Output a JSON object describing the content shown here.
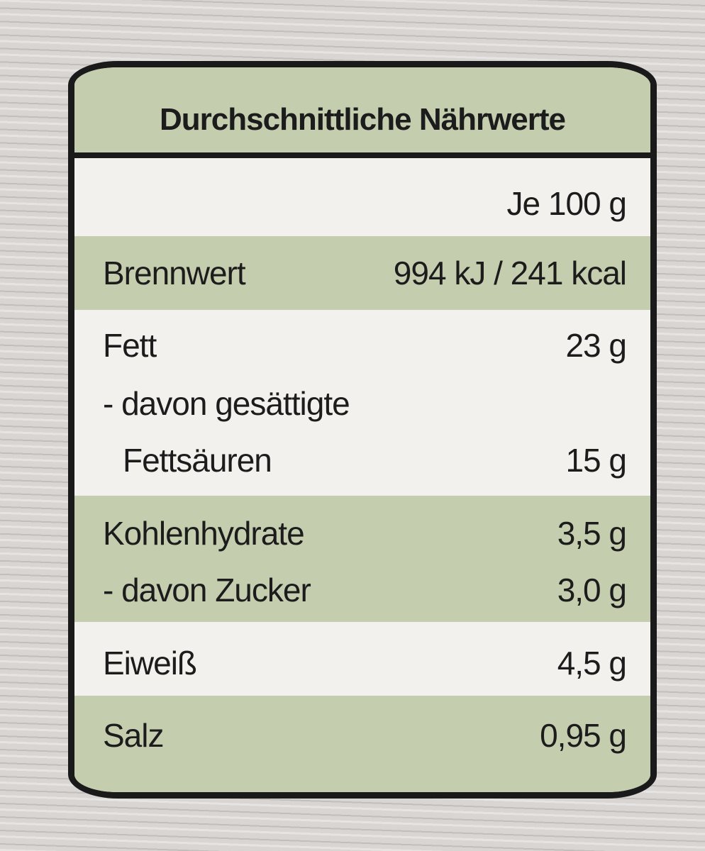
{
  "header": {
    "title": "Durchschnittliche Nährwerte"
  },
  "table": {
    "column_header": "Je 100 g",
    "rows": [
      {
        "label": "Brennwert",
        "value": "994 kJ / 241 kcal"
      },
      {
        "label": "Fett",
        "value": "23 g"
      },
      {
        "label": "- davon gesättigte",
        "label_continued": "Fettsäuren",
        "value": "15 g"
      },
      {
        "label": "Kohlenhydrate",
        "value": "3,5 g"
      },
      {
        "label": "- davon Zucker",
        "value": "3,0 g"
      },
      {
        "label": "Eiweiß",
        "value": "4,5 g"
      },
      {
        "label": "Salz",
        "value": "0,95 g"
      }
    ]
  }
}
